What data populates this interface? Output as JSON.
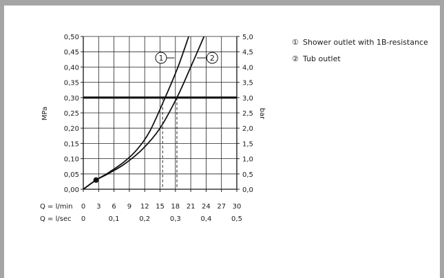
{
  "chart_data": {
    "type": "line",
    "x_label_flow_min": "Q = l/min",
    "x_label_flow_sec": "Q = l/sec",
    "x_ticks_min": [
      0,
      3,
      6,
      9,
      12,
      15,
      18,
      21,
      24,
      27,
      30
    ],
    "x_tick_labels_min": [
      "0",
      "3",
      "6",
      "9",
      "12",
      "15",
      "18",
      "21",
      "24",
      "27",
      "30"
    ],
    "x_ticks_sec": [
      0,
      0.1,
      0.2,
      0.3,
      0.4,
      0.5
    ],
    "x_tick_labels_sec": [
      "0",
      "0,1",
      "0,2",
      "0,3",
      "0,4",
      "0,5"
    ],
    "xlim": [
      0,
      30
    ],
    "y_left_label": "MPa",
    "y_left_ticks": [
      0,
      0.05,
      0.1,
      0.15,
      0.2,
      0.25,
      0.3,
      0.35,
      0.4,
      0.45,
      0.5
    ],
    "y_left_tick_labels": [
      "0,00",
      "0,05",
      "0,10",
      "0,15",
      "0,20",
      "0,25",
      "0,30",
      "0,35",
      "0,40",
      "0,45",
      "0,50"
    ],
    "y_right_label": "bar",
    "y_right_tick_labels": [
      "0,0",
      "0,5",
      "1,0",
      "1,5",
      "2,0",
      "2,5",
      "3,0",
      "3,5",
      "4,0",
      "4,5",
      "5,0"
    ],
    "ylim": [
      0,
      0.5
    ],
    "grid": true,
    "reference_line": {
      "y": 0.3
    },
    "start_point": {
      "x": 2.5,
      "y": 0.03
    },
    "series": [
      {
        "marker": "1",
        "x": [
          0,
          2.5,
          5,
          8,
          10.5,
          13,
          16,
          18.5,
          20.6
        ],
        "y": [
          0,
          0.03,
          0.055,
          0.09,
          0.13,
          0.19,
          0.3,
          0.4,
          0.5
        ]
      },
      {
        "marker": "2",
        "x": [
          0,
          2.5,
          5,
          8,
          11.5,
          15,
          18.3,
          21,
          23.6
        ],
        "y": [
          0,
          0.03,
          0.052,
          0.082,
          0.13,
          0.2,
          0.3,
          0.4,
          0.5
        ]
      }
    ],
    "series_markers": [
      {
        "series": "1",
        "text": "1",
        "label_x": 15.2,
        "label_y": 0.43,
        "line_to_x": 17.8,
        "line_to_y": 0.43
      },
      {
        "series": "2",
        "text": "2",
        "label_x": 25.2,
        "label_y": 0.43,
        "line_to_x": 22.2,
        "line_to_y": 0.43
      }
    ],
    "drop_lines": [
      {
        "x": 15.5,
        "from_y": 0.3
      },
      {
        "x": 18.3,
        "from_y": 0.3
      }
    ]
  },
  "legend": {
    "items": [
      {
        "marker": "①",
        "text": "Shower outlet with 1B-resistance"
      },
      {
        "marker": "②",
        "text": "Tub outlet"
      }
    ]
  }
}
